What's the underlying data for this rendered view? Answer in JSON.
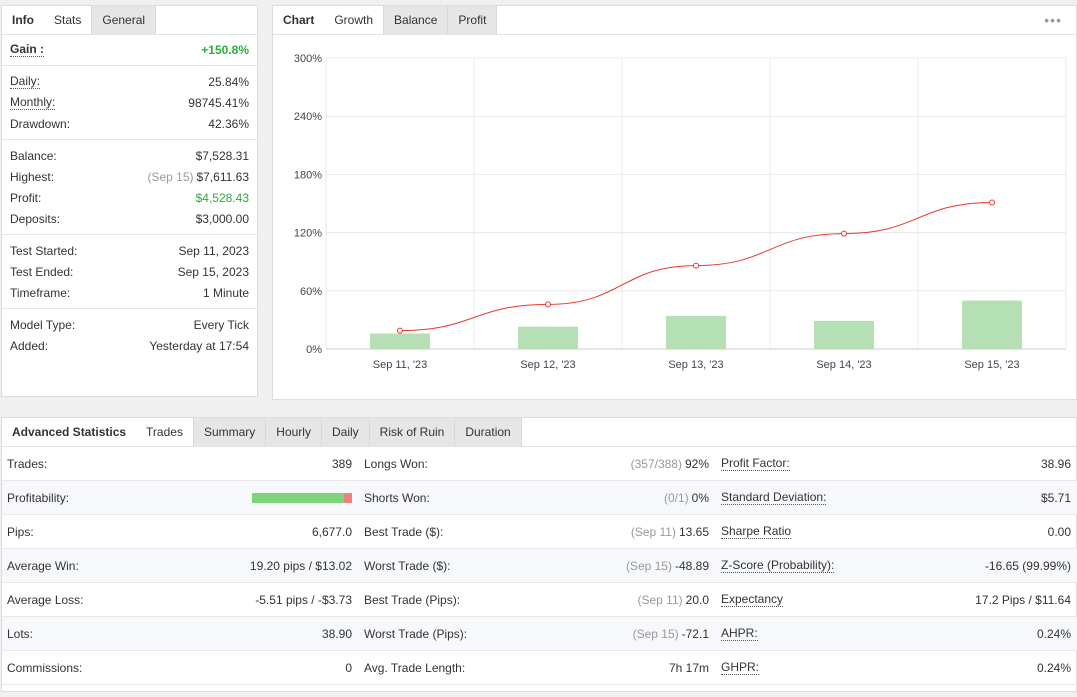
{
  "info_panel": {
    "tabs": [
      "Info",
      "Stats",
      "General"
    ],
    "gain": {
      "label": "Gain :",
      "value": "+150.8%"
    },
    "rows_a": [
      {
        "label": "Daily:",
        "value": "25.84%"
      },
      {
        "label": "Monthly:",
        "value": "98745.41%"
      },
      {
        "label": "Drawdown:",
        "value": "42.36%"
      }
    ],
    "rows_b": [
      {
        "label": "Balance:",
        "value": "$7,528.31"
      },
      {
        "label": "Highest:",
        "pre": "(Sep 15)",
        "value": "$7,611.63"
      },
      {
        "label": "Profit:",
        "value": "$4,528.43"
      },
      {
        "label": "Deposits:",
        "value": "$3,000.00"
      }
    ],
    "rows_c": [
      {
        "label": "Test Started:",
        "value": "Sep 11, 2023"
      },
      {
        "label": "Test Ended:",
        "value": "Sep 15, 2023"
      },
      {
        "label": "Timeframe:",
        "value": "1 Minute"
      }
    ],
    "rows_d": [
      {
        "label": "Model Type:",
        "value": "Every Tick"
      },
      {
        "label": "Added:",
        "value": "Yesterday at 17:54"
      }
    ]
  },
  "chart_panel": {
    "tabs": [
      "Chart",
      "Growth",
      "Balance",
      "Profit"
    ],
    "menu": "•••"
  },
  "chart_data": {
    "type": "bar",
    "categories": [
      "Sep 11, '23",
      "Sep 12, '23",
      "Sep 13, '23",
      "Sep 14, '23",
      "Sep 15, '23"
    ],
    "yticks": [
      "0%",
      "60%",
      "120%",
      "180%",
      "240%",
      "300%"
    ],
    "ylim": [
      0,
      300
    ],
    "series": [
      {
        "kind": "bar",
        "values": [
          16,
          23,
          34,
          29,
          50
        ],
        "color": "#b5e0b3"
      },
      {
        "kind": "line",
        "values": [
          19,
          46,
          86,
          119,
          151
        ],
        "color": "#e8382c"
      }
    ],
    "grid": true
  },
  "advanced": {
    "tabs": [
      "Advanced Statistics",
      "Trades",
      "Summary",
      "Hourly",
      "Daily",
      "Risk of Ruin",
      "Duration"
    ],
    "profitability_fraction": 0.92,
    "rows": [
      [
        {
          "label": "Trades:",
          "value": "389"
        },
        {
          "label": "Longs Won:",
          "pre": "(357/388)",
          "value": "92%"
        },
        {
          "label": "Profit Factor:",
          "value": "38.96",
          "dotted": true
        }
      ],
      [
        {
          "label": "Profitability:",
          "bar": true
        },
        {
          "label": "Shorts Won:",
          "pre": "(0/1)",
          "value": "0%"
        },
        {
          "label": "Standard Deviation:",
          "value": "$5.71",
          "dotted": true
        }
      ],
      [
        {
          "label": "Pips:",
          "value": "6,677.0"
        },
        {
          "label": "Best Trade ($):",
          "pre": "(Sep 11)",
          "value": "13.65"
        },
        {
          "label": "Sharpe Ratio",
          "value": "0.00",
          "dotted": true
        }
      ],
      [
        {
          "label": "Average Win:",
          "value": "19.20 pips / $13.02"
        },
        {
          "label": "Worst Trade ($):",
          "pre": "(Sep 15)",
          "value": "-48.89"
        },
        {
          "label": "Z-Score (Probability):",
          "value": "-16.65 (99.99%)",
          "dotted": true
        }
      ],
      [
        {
          "label": "Average Loss:",
          "value": "-5.51 pips / -$3.73"
        },
        {
          "label": "Best Trade (Pips):",
          "pre": "(Sep 11)",
          "value": "20.0"
        },
        {
          "label": "Expectancy",
          "value": "17.2 Pips / $11.64",
          "dotted": true
        }
      ],
      [
        {
          "label": "Lots:",
          "value": "38.90"
        },
        {
          "label": "Worst Trade (Pips):",
          "pre": "(Sep 15)",
          "value": "-72.1"
        },
        {
          "label": "AHPR:",
          "value": "0.24%",
          "dotted": true
        }
      ],
      [
        {
          "label": "Commissions:",
          "value": "0"
        },
        {
          "label": "Avg. Trade Length:",
          "value": "7h 17m"
        },
        {
          "label": "GHPR:",
          "value": "0.24%",
          "dotted": true
        }
      ]
    ]
  }
}
